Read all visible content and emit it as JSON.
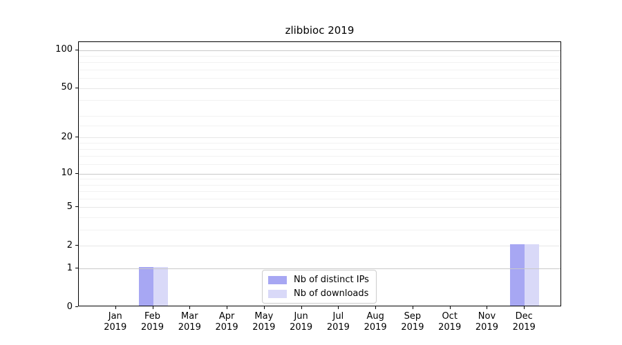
{
  "chart_data": {
    "type": "bar",
    "title": "zlibbioc 2019",
    "categories": [
      "Jan",
      "Feb",
      "Mar",
      "Apr",
      "May",
      "Jun",
      "Jul",
      "Aug",
      "Sep",
      "Oct",
      "Nov",
      "Dec"
    ],
    "category_year": "2019",
    "series": [
      {
        "name": "Nb of distinct IPs",
        "color": "#a7a7f3",
        "values": [
          0,
          1,
          0,
          0,
          0,
          0,
          0,
          0,
          0,
          0,
          0,
          2
        ]
      },
      {
        "name": "Nb of downloads",
        "color": "#d9d9f8",
        "values": [
          0,
          1,
          0,
          0,
          0,
          0,
          0,
          0,
          0,
          0,
          0,
          2
        ]
      }
    ],
    "xlabel": "",
    "ylabel": "",
    "y_scale": "log10(1+y)",
    "y_ticks": [
      0,
      1,
      2,
      5,
      10,
      20,
      50,
      100
    ],
    "y_decade_gridlines": [
      1,
      10,
      100
    ],
    "y_minor_gridlines": [
      3,
      4,
      6,
      7,
      8,
      9,
      12,
      14,
      16,
      18,
      25,
      30,
      40,
      60,
      70,
      80,
      90
    ],
    "ylim": [
      0,
      115
    ],
    "grid": true,
    "legend_position": "lower center inside"
  },
  "colors": {
    "bar_distinct_ips": "#a7a7f3",
    "bar_downloads": "#d9d9f8",
    "grid_decade": "#c9c9c9",
    "grid_labeled": "#e6e6e6",
    "grid_minor": "#f2f2f2",
    "axis": "#000000",
    "legend_border": "#cccccc",
    "text": "#000000"
  }
}
